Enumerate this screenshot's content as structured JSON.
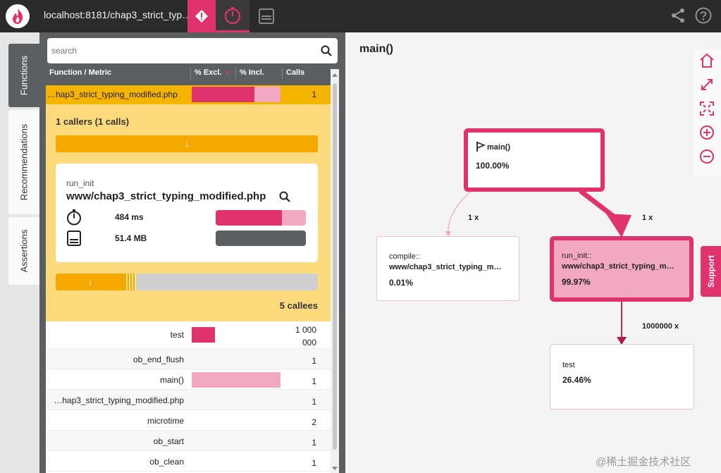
{
  "topbar": {
    "url": "localhost:8181/chap3_strict_typ…",
    "tabs": [
      "alert-icon",
      "timer-icon",
      "memory-icon"
    ],
    "right_icons": [
      "share-icon",
      "help-icon"
    ]
  },
  "side_tabs": {
    "functions": "Functions",
    "recommendations": "Recommendations",
    "assertions": "Assertions"
  },
  "search": {
    "placeholder": "search"
  },
  "table": {
    "headers": {
      "function": "Function / Metric",
      "excl": "% Excl.",
      "incl": "% Incl.",
      "calls": "Calls"
    },
    "selected_row": {
      "function": "…hap3_strict_typing_modified.php",
      "excl": 0.71,
      "incl": 1.0,
      "calls": "1"
    }
  },
  "detail": {
    "callers_title": "1 callers (1 calls)",
    "arrow": "↓",
    "card": {
      "subtitle": "run_init",
      "file": "www/chap3_strict_typing_modified.php",
      "time": "484 ms",
      "memory": "51.4 MB",
      "time_excl": 0.74,
      "memory_fill": 1.0
    },
    "callees_title": "5 callees"
  },
  "callees": [
    {
      "function": "test",
      "calls_line1": "1 000",
      "calls_line2": "000",
      "excl": 0.26
    },
    {
      "function": "ob_end_flush",
      "calls_line1": "1",
      "calls_line2": ""
    },
    {
      "function": "main()",
      "calls_line1": "1",
      "calls_line2": "",
      "incl": 1.0
    },
    {
      "function": "…hap3_strict_typing_modified.php",
      "calls_line1": "1",
      "calls_line2": ""
    },
    {
      "function": "microtime",
      "calls_line1": "2",
      "calls_line2": ""
    },
    {
      "function": "ob_start",
      "calls_line1": "1",
      "calls_line2": ""
    },
    {
      "function": "ob_clean",
      "calls_line1": "1",
      "calls_line2": ""
    }
  ],
  "graph": {
    "title": "main()",
    "nodes": {
      "main": {
        "name": "main()",
        "pct": "100.00%"
      },
      "compile": {
        "name": "compile::",
        "file": "www/chap3_strict_typing_m…",
        "pct": "0.01%"
      },
      "run_init": {
        "name": "run_init::",
        "file": "www/chap3_strict_typing_m…",
        "pct": "99.97%"
      },
      "test": {
        "name": "test",
        "pct": "26.46%"
      }
    },
    "edges": {
      "main_compile": "1 x",
      "main_run": "1 x",
      "run_test": "1000000 x"
    },
    "tools": [
      "home-icon",
      "expand-icon",
      "fit-icon",
      "zoom-in-icon",
      "zoom-out-icon"
    ]
  },
  "support": "Support",
  "watermark": "@稀土掘金技术社区",
  "colors": {
    "accent": "#e0336e",
    "accent_light": "#f2a7c2",
    "orange": "#f5a800",
    "panel": "#5b5f61",
    "detail_bg": "#fddb7c"
  }
}
